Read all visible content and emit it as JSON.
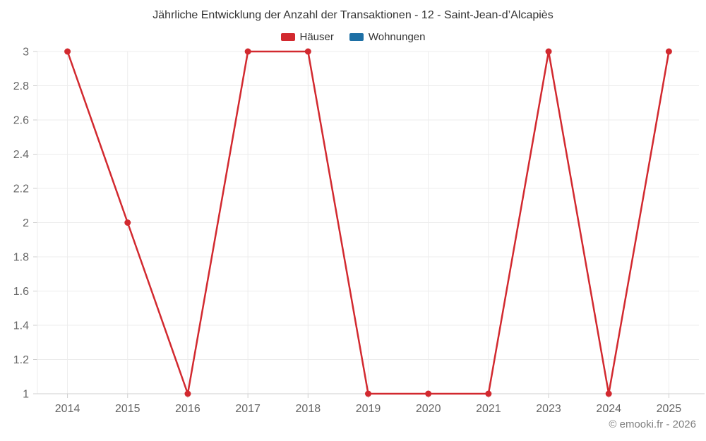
{
  "chart_data": {
    "type": "line",
    "title": "Jährliche Entwicklung der Anzahl der Transaktionen - 12 - Saint-Jean-d’Alcapiès",
    "categories": [
      "2014",
      "2015",
      "2016",
      "2017",
      "2018",
      "2019",
      "2020",
      "2021",
      "2023",
      "2024",
      "2025"
    ],
    "series": [
      {
        "name": "Häuser",
        "color": "#d2292f",
        "values": [
          3,
          2,
          1,
          3,
          3,
          1,
          1,
          1,
          3,
          1,
          3
        ]
      },
      {
        "name": "Wohnungen",
        "color": "#1d6fa5",
        "values": []
      }
    ],
    "xlabel": "",
    "ylabel": "",
    "ylim": [
      1,
      3
    ],
    "ytick_step": 0.2,
    "yticks": [
      "1",
      "1.2",
      "1.4",
      "1.6",
      "1.8",
      "2",
      "2.2",
      "2.4",
      "2.6",
      "2.8",
      "3"
    ],
    "grid": true,
    "legend_position": "top",
    "colors": {
      "gridline": "#ececec",
      "axis_line": "#cfcfcf",
      "tick_label": "#666666",
      "title_text": "#333333"
    }
  },
  "footer": {
    "copyright": "© emooki.fr - 2026"
  }
}
